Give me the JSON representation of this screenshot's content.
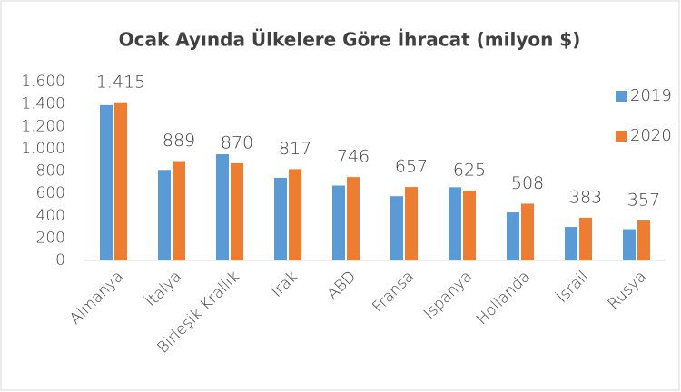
{
  "chart_data": {
    "type": "bar",
    "title": "Ocak Ayında Ülkelere Göre İhracat (milyon $)",
    "categories": [
      "Almanya",
      "İtalya",
      "Birleşik Krallık",
      "Irak",
      "ABD",
      "Fransa",
      "İspanya",
      "Hollanda",
      "İsrail",
      "Rusya"
    ],
    "series": [
      {
        "name": "2019",
        "color": "#5b9bd5",
        "values": [
          1390,
          810,
          950,
          740,
          670,
          575,
          655,
          430,
          300,
          280
        ]
      },
      {
        "name": "2020",
        "color": "#ed7d31",
        "values": [
          1415,
          889,
          870,
          817,
          746,
          657,
          625,
          508,
          383,
          357
        ],
        "value_labels": [
          "1.415",
          "889",
          "870",
          "817",
          "746",
          "657",
          "625",
          "508",
          "383",
          "357"
        ]
      }
    ],
    "ylim": [
      0,
      1600
    ],
    "yticks": [
      0,
      200,
      400,
      600,
      800,
      {
        "value": 1000,
        "label": "1.000"
      },
      {
        "value": 1200,
        "label": "1.200"
      },
      {
        "value": 1400,
        "label": "1.400"
      },
      {
        "value": 1600,
        "label": "1.600"
      }
    ],
    "grid": false,
    "legend": "right"
  }
}
